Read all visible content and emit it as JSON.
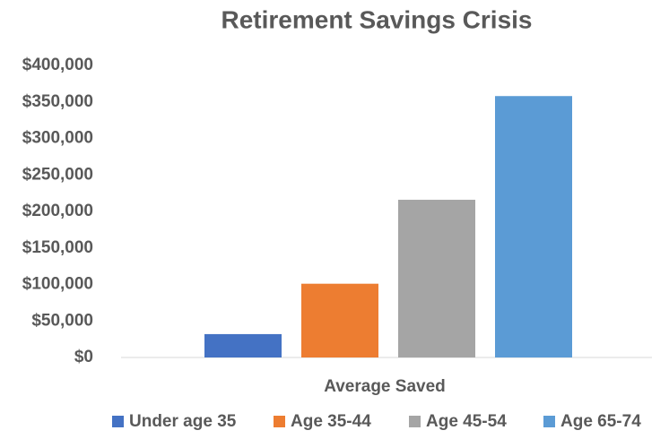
{
  "chart_data": {
    "type": "bar",
    "title": "Retirement Savings Crisis",
    "categories": [
      "Average Saved"
    ],
    "series": [
      {
        "name": "Under age 35",
        "color": "#4472c4",
        "values": [
          32000
        ]
      },
      {
        "name": "Age 35-44",
        "color": "#ed7d31",
        "values": [
          101000
        ]
      },
      {
        "name": "Age 45-54",
        "color": "#a5a5a5",
        "values": [
          216000
        ]
      },
      {
        "name": "Age 65-74",
        "color": "#5b9bd5",
        "values": [
          358000
        ]
      }
    ],
    "ylim": [
      0,
      400000
    ],
    "yticks": [
      {
        "value": 0,
        "label": "$0"
      },
      {
        "value": 50000,
        "label": "$50,000"
      },
      {
        "value": 100000,
        "label": "$100,000"
      },
      {
        "value": 150000,
        "label": "$150,000"
      },
      {
        "value": 200000,
        "label": "$200,000"
      },
      {
        "value": 250000,
        "label": "$250,000"
      },
      {
        "value": 300000,
        "label": "$300,000"
      },
      {
        "value": 350000,
        "label": "$350,000"
      },
      {
        "value": 400000,
        "label": "$400,000"
      }
    ],
    "grid": false,
    "legend": "bottom"
  }
}
